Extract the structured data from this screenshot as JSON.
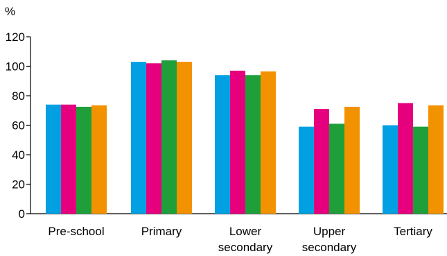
{
  "chart_data": {
    "type": "bar",
    "unit_label": "%",
    "ylim": [
      0,
      120
    ],
    "yticks": [
      "0",
      "20",
      "40",
      "60",
      "80",
      "100",
      "120"
    ],
    "grid": false,
    "categories": [
      [
        "Pre-school"
      ],
      [
        "Primary"
      ],
      [
        "Lower",
        "secondary"
      ],
      [
        "Upper",
        "secondary"
      ],
      [
        "Tertiary"
      ]
    ],
    "series": [
      {
        "color": "#00a0e3",
        "values": [
          74,
          103,
          94,
          59,
          60
        ]
      },
      {
        "color": "#e6007e",
        "values": [
          74,
          102,
          97,
          71,
          75
        ]
      },
      {
        "color": "#1f9f3a",
        "values": [
          72.5,
          104,
          94,
          61,
          59
        ]
      },
      {
        "color": "#f39200",
        "values": [
          73.5,
          103,
          96.5,
          72.5,
          73.5
        ]
      }
    ]
  }
}
